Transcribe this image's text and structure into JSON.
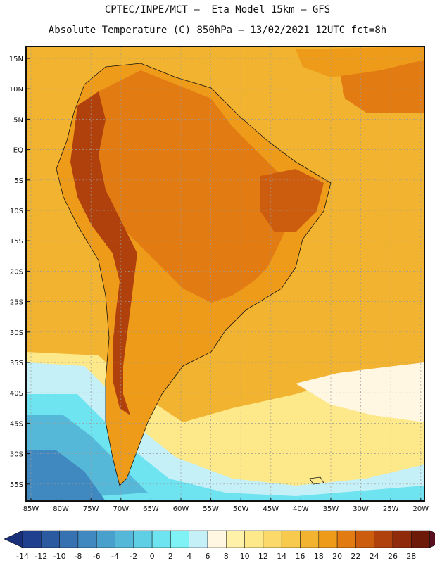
{
  "title_line1": "CPTEC/INPE/MCT –  Eta Model 15km – GFS",
  "title_line2": "Absolute Temperature (C) 850hPa – 13/02/2021 12UTC fct=8h",
  "lat_labels": [
    "15N",
    "10N",
    "5N",
    "EQ",
    "5S",
    "10S",
    "15S",
    "20S",
    "25S",
    "30S",
    "35S",
    "40S",
    "45S",
    "50S",
    "55S"
  ],
  "lon_labels": [
    "85W",
    "80W",
    "75W",
    "70W",
    "65W",
    "60W",
    "55W",
    "50W",
    "45W",
    "40W",
    "35W",
    "30W",
    "25W",
    "20W"
  ],
  "colorbar": {
    "labels": [
      "-14",
      "-12",
      "-10",
      "-8",
      "-6",
      "-4",
      "-2",
      "0",
      "2",
      "4",
      "6",
      "8",
      "10",
      "12",
      "14",
      "16",
      "18",
      "20",
      "22",
      "24",
      "26",
      "28"
    ],
    "colors": [
      "#1f3f8f",
      "#2c5aa0",
      "#3672b2",
      "#3f88c0",
      "#4aa0cc",
      "#55b8d8",
      "#5ecfe5",
      "#6ee4f0",
      "#7ef2f5",
      "#c6f0f7",
      "#fff7e1",
      "#fff1a8",
      "#fde88a",
      "#fbd96a",
      "#f7c94c",
      "#f2b430",
      "#ee9b1a",
      "#e27b12",
      "#cc5c0e",
      "#b0400c",
      "#8f2a0a",
      "#6e1a08"
    ],
    "under_color": "#1a2f7a",
    "over_color": "#5a0f20"
  },
  "field_colors": {
    "ocean_warm": "#f2b430",
    "land_hot": "#e27b12",
    "andes_hot": "#b0400c",
    "south_cold": "#5ecfe5",
    "south_cool": "#c6f0f7",
    "south_mild": "#fde88a"
  }
}
